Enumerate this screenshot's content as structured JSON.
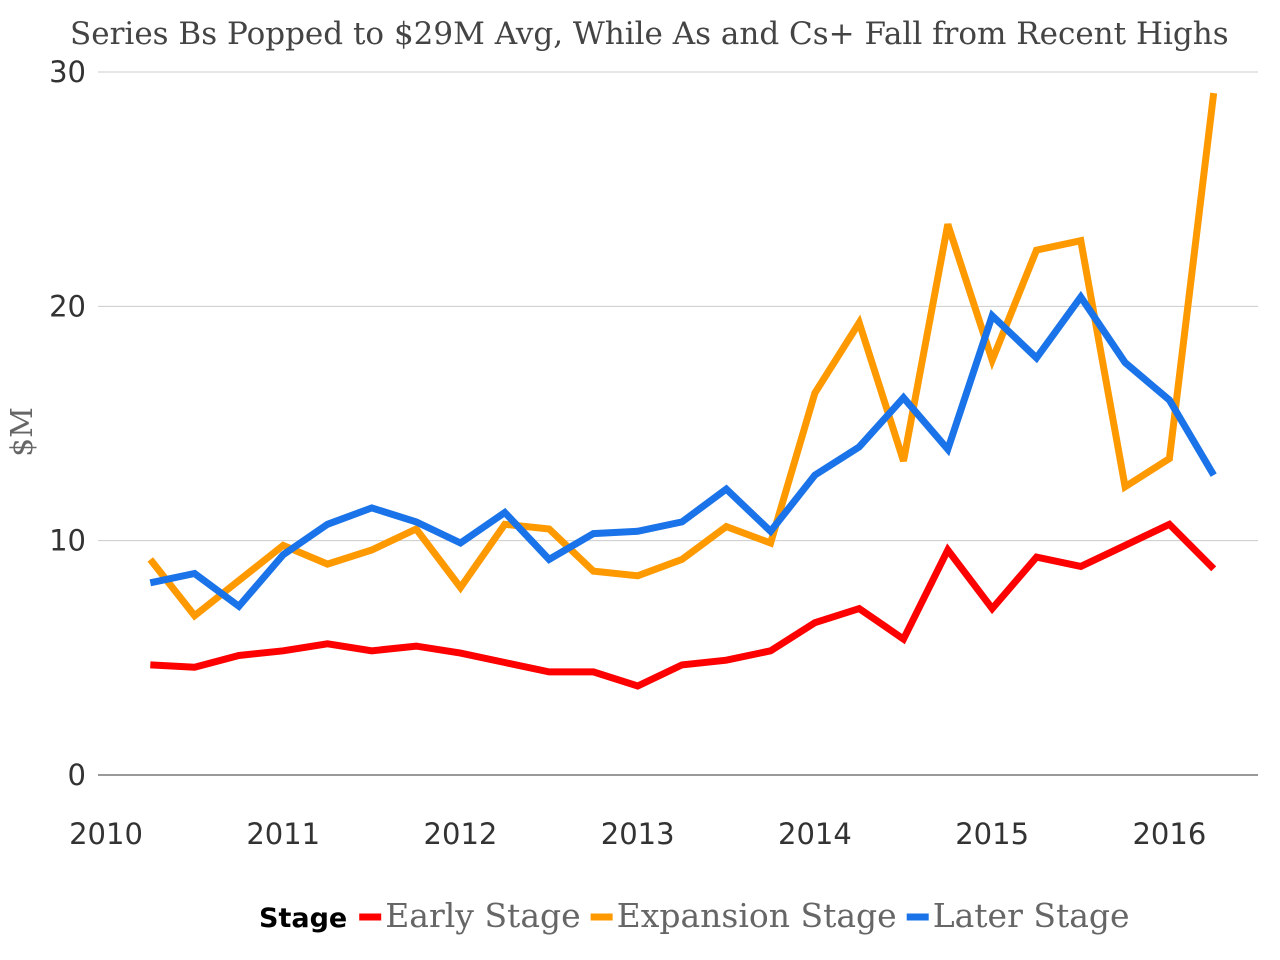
{
  "chart_data": {
    "type": "line",
    "title": "Series Bs Popped to $29M Avg, While As and Cs+ Fall from Recent Highs",
    "ylabel": "$M",
    "xlabel": "",
    "ylim": [
      0,
      30
    ],
    "yticks": [
      0,
      10,
      20,
      30
    ],
    "xlim": [
      2010,
      2016.5
    ],
    "xticks": [
      "2010",
      "2011",
      "2012",
      "2013",
      "2014",
      "2015",
      "2016"
    ],
    "grid": true,
    "legend": {
      "title": "Stage",
      "position": "bottom"
    },
    "x": [
      2010.25,
      2010.5,
      2010.75,
      2011.0,
      2011.25,
      2011.5,
      2011.75,
      2012.0,
      2012.25,
      2012.5,
      2012.75,
      2013.0,
      2013.25,
      2013.5,
      2013.75,
      2014.0,
      2014.25,
      2014.5,
      2014.75,
      2015.0,
      2015.25,
      2015.5,
      2015.75,
      2016.0,
      2016.25
    ],
    "series": [
      {
        "name": "Early Stage",
        "color": "#ff0000",
        "values": [
          4.7,
          4.6,
          5.1,
          5.3,
          5.6,
          5.3,
          5.5,
          5.2,
          4.8,
          4.4,
          4.4,
          3.8,
          4.7,
          4.9,
          5.3,
          6.5,
          7.1,
          5.8,
          9.6,
          7.1,
          9.3,
          8.9,
          9.8,
          10.7,
          8.8
        ]
      },
      {
        "name": "Expansion Stage",
        "color": "#ff9900",
        "values": [
          9.2,
          6.8,
          8.3,
          9.8,
          9.0,
          9.6,
          10.5,
          8.0,
          10.7,
          10.5,
          8.7,
          8.5,
          9.2,
          10.6,
          9.9,
          16.3,
          19.3,
          13.4,
          23.5,
          17.7,
          22.4,
          22.8,
          12.3,
          13.5,
          29.1
        ]
      },
      {
        "name": "Later Stage",
        "color": "#1a73e8",
        "values": [
          8.2,
          8.6,
          7.2,
          9.4,
          10.7,
          11.4,
          10.8,
          9.9,
          11.2,
          9.2,
          10.3,
          10.4,
          10.8,
          12.2,
          10.4,
          12.8,
          14.0,
          16.1,
          13.9,
          19.6,
          17.8,
          20.4,
          17.6,
          16.0,
          12.8
        ]
      }
    ]
  }
}
